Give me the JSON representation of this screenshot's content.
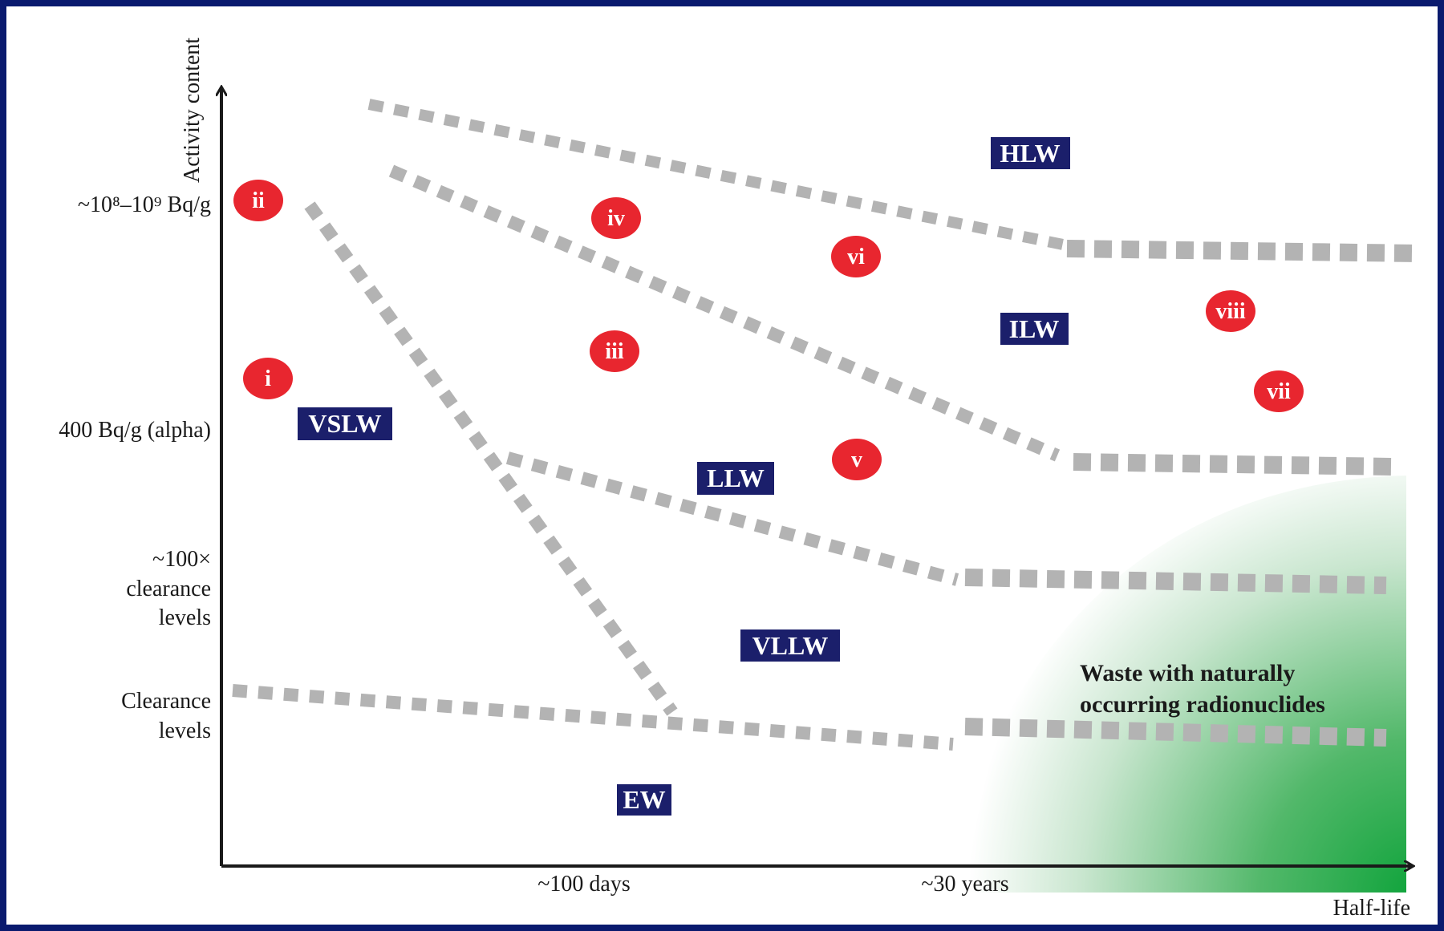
{
  "axes": {
    "y_title": "Activity content",
    "x_title": "Half-life",
    "y_ticks": {
      "t1": "~10⁸–10⁹ Bq/g",
      "t2": "400 Bq/g (alpha)",
      "t3": [
        "~100×",
        "clearance",
        "levels"
      ],
      "t4": [
        "Clearance",
        "levels"
      ]
    },
    "x_ticks": {
      "days": "~100 days",
      "years": "~30 years"
    }
  },
  "classes": {
    "hlw": "HLW",
    "ilw": "ILW",
    "llw": "LLW",
    "vllw": "VLLW",
    "vslw": "VSLW",
    "ew": "EW"
  },
  "markers": {
    "i": "i",
    "ii": "ii",
    "iii": "iii",
    "iv": "iv",
    "v": "v",
    "vi": "vi",
    "vii": "vii",
    "viii": "viii"
  },
  "natural": [
    "Waste with naturally",
    "occurring radionuclides"
  ],
  "colors": {
    "frame": "#0a1a6e",
    "badge_bg": "#1b1f6b",
    "marker": "#e8262f",
    "boundary": "#b4b4b4",
    "natural_green": "#1fa53a"
  }
}
